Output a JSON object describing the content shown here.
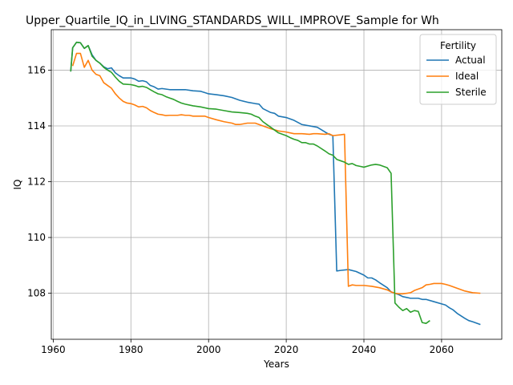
{
  "chart_data": {
    "type": "line",
    "title": "Upper_Quartile_IQ_in_LIVING_STANDARDS_WILL_IMPROVE_Sample for Wh",
    "xlabel": "Years",
    "ylabel": "IQ",
    "xlim": [
      1959.5,
      2075.5
    ],
    "ylim": [
      106.35,
      117.45
    ],
    "x_ticks": [
      1960,
      1980,
      2000,
      2020,
      2040,
      2060
    ],
    "x_tick_labels": [
      "1960",
      "1980",
      "2000",
      "2020",
      "2040",
      "2060"
    ],
    "y_ticks": [
      108,
      110,
      112,
      114,
      116
    ],
    "y_tick_labels": [
      "108",
      "110",
      "112",
      "114",
      "116"
    ],
    "grid": true,
    "legend": {
      "title": "Fertility",
      "placement": "top-right"
    },
    "series": [
      {
        "name": "Actual",
        "color": "#1f77b4",
        "points": [
          [
            1964.5,
            115.95
          ],
          [
            1965,
            116.8
          ],
          [
            1966,
            117.0
          ],
          [
            1967,
            116.98
          ],
          [
            1968,
            116.78
          ],
          [
            1969,
            116.88
          ],
          [
            1970,
            116.55
          ],
          [
            1971,
            116.35
          ],
          [
            1972,
            116.25
          ],
          [
            1973,
            116.12
          ],
          [
            1974,
            116.05
          ],
          [
            1975,
            116.08
          ],
          [
            1976,
            115.9
          ],
          [
            1977,
            115.8
          ],
          [
            1978,
            115.72
          ],
          [
            1980,
            115.72
          ],
          [
            1981,
            115.68
          ],
          [
            1982,
            115.6
          ],
          [
            1983,
            115.62
          ],
          [
            1984,
            115.58
          ],
          [
            1985,
            115.45
          ],
          [
            1986,
            115.4
          ],
          [
            1987,
            115.32
          ],
          [
            1988,
            115.34
          ],
          [
            1990,
            115.3
          ],
          [
            1992,
            115.3
          ],
          [
            1994,
            115.3
          ],
          [
            1996,
            115.26
          ],
          [
            1998,
            115.24
          ],
          [
            2000,
            115.15
          ],
          [
            2002,
            115.12
          ],
          [
            2004,
            115.08
          ],
          [
            2006,
            115.02
          ],
          [
            2008,
            114.92
          ],
          [
            2010,
            114.85
          ],
          [
            2012,
            114.8
          ],
          [
            2013,
            114.78
          ],
          [
            2014,
            114.62
          ],
          [
            2016,
            114.48
          ],
          [
            2017,
            114.45
          ],
          [
            2018,
            114.35
          ],
          [
            2020,
            114.3
          ],
          [
            2022,
            114.2
          ],
          [
            2024,
            114.05
          ],
          [
            2026,
            114.0
          ],
          [
            2028,
            113.95
          ],
          [
            2030,
            113.78
          ],
          [
            2031,
            113.7
          ],
          [
            2032,
            113.65
          ],
          [
            2033,
            108.8
          ],
          [
            2034,
            108.82
          ],
          [
            2036,
            108.85
          ],
          [
            2038,
            108.78
          ],
          [
            2040,
            108.65
          ],
          [
            2041,
            108.55
          ],
          [
            2042,
            108.55
          ],
          [
            2043,
            108.48
          ],
          [
            2044,
            108.38
          ],
          [
            2046,
            108.2
          ],
          [
            2047,
            108.05
          ],
          [
            2048,
            108.0
          ],
          [
            2049,
            107.95
          ],
          [
            2050,
            107.88
          ],
          [
            2052,
            107.82
          ],
          [
            2054,
            107.82
          ],
          [
            2055,
            107.78
          ],
          [
            2056,
            107.78
          ],
          [
            2058,
            107.7
          ],
          [
            2060,
            107.62
          ],
          [
            2061,
            107.58
          ],
          [
            2062,
            107.48
          ],
          [
            2063,
            107.4
          ],
          [
            2064,
            107.28
          ],
          [
            2066,
            107.1
          ],
          [
            2067,
            107.02
          ],
          [
            2068,
            106.98
          ],
          [
            2070,
            106.88
          ]
        ]
      },
      {
        "name": "Ideal",
        "color": "#ff7f0e",
        "points": [
          [
            1965,
            116.15
          ],
          [
            1966,
            116.6
          ],
          [
            1967,
            116.6
          ],
          [
            1968,
            116.1
          ],
          [
            1969,
            116.35
          ],
          [
            1970,
            116.0
          ],
          [
            1971,
            115.85
          ],
          [
            1972,
            115.8
          ],
          [
            1973,
            115.55
          ],
          [
            1974,
            115.45
          ],
          [
            1975,
            115.35
          ],
          [
            1976,
            115.15
          ],
          [
            1977,
            115.0
          ],
          [
            1978,
            114.88
          ],
          [
            1979,
            114.82
          ],
          [
            1980,
            114.8
          ],
          [
            1981,
            114.75
          ],
          [
            1982,
            114.68
          ],
          [
            1983,
            114.7
          ],
          [
            1984,
            114.65
          ],
          [
            1985,
            114.55
          ],
          [
            1986,
            114.48
          ],
          [
            1987,
            114.42
          ],
          [
            1988,
            114.4
          ],
          [
            1989,
            114.37
          ],
          [
            1990,
            114.38
          ],
          [
            1992,
            114.38
          ],
          [
            1993,
            114.4
          ],
          [
            1994,
            114.38
          ],
          [
            1995,
            114.38
          ],
          [
            1996,
            114.35
          ],
          [
            1998,
            114.35
          ],
          [
            1999,
            114.35
          ],
          [
            2000,
            114.3
          ],
          [
            2002,
            114.22
          ],
          [
            2004,
            114.15
          ],
          [
            2006,
            114.1
          ],
          [
            2007,
            114.05
          ],
          [
            2008,
            114.05
          ],
          [
            2010,
            114.1
          ],
          [
            2012,
            114.1
          ],
          [
            2013,
            114.05
          ],
          [
            2014,
            114.0
          ],
          [
            2016,
            113.9
          ],
          [
            2018,
            113.82
          ],
          [
            2020,
            113.78
          ],
          [
            2022,
            113.72
          ],
          [
            2024,
            113.72
          ],
          [
            2026,
            113.7
          ],
          [
            2027,
            113.72
          ],
          [
            2028,
            113.72
          ],
          [
            2030,
            113.7
          ],
          [
            2031,
            113.72
          ],
          [
            2032,
            113.65
          ],
          [
            2034,
            113.68
          ],
          [
            2035,
            113.7
          ],
          [
            2036,
            108.25
          ],
          [
            2037,
            108.3
          ],
          [
            2038,
            108.28
          ],
          [
            2040,
            108.28
          ],
          [
            2042,
            108.25
          ],
          [
            2044,
            108.2
          ],
          [
            2046,
            108.12
          ],
          [
            2047,
            108.05
          ],
          [
            2048,
            108.0
          ],
          [
            2049,
            107.98
          ],
          [
            2050,
            107.98
          ],
          [
            2052,
            108.02
          ],
          [
            2053,
            108.1
          ],
          [
            2054,
            108.15
          ],
          [
            2055,
            108.2
          ],
          [
            2056,
            108.3
          ],
          [
            2057,
            108.32
          ],
          [
            2058,
            108.35
          ],
          [
            2060,
            108.35
          ],
          [
            2061,
            108.32
          ],
          [
            2062,
            108.28
          ],
          [
            2064,
            108.18
          ],
          [
            2066,
            108.08
          ],
          [
            2068,
            108.02
          ],
          [
            2070,
            108.0
          ]
        ]
      },
      {
        "name": "Sterile",
        "color": "#2ca02c",
        "points": [
          [
            1964.5,
            115.95
          ],
          [
            1965,
            116.8
          ],
          [
            1966,
            117.0
          ],
          [
            1967,
            116.98
          ],
          [
            1968,
            116.78
          ],
          [
            1969,
            116.88
          ],
          [
            1970,
            116.5
          ],
          [
            1971,
            116.35
          ],
          [
            1972,
            116.25
          ],
          [
            1973,
            116.1
          ],
          [
            1974,
            116.0
          ],
          [
            1975,
            115.92
          ],
          [
            1976,
            115.75
          ],
          [
            1977,
            115.6
          ],
          [
            1978,
            115.5
          ],
          [
            1980,
            115.48
          ],
          [
            1981,
            115.45
          ],
          [
            1982,
            115.4
          ],
          [
            1983,
            115.42
          ],
          [
            1984,
            115.38
          ],
          [
            1985,
            115.3
          ],
          [
            1986,
            115.22
          ],
          [
            1987,
            115.15
          ],
          [
            1988,
            115.12
          ],
          [
            1989,
            115.05
          ],
          [
            1990,
            115.0
          ],
          [
            1991,
            114.95
          ],
          [
            1992,
            114.88
          ],
          [
            1993,
            114.82
          ],
          [
            1994,
            114.78
          ],
          [
            1996,
            114.72
          ],
          [
            1998,
            114.68
          ],
          [
            2000,
            114.62
          ],
          [
            2002,
            114.6
          ],
          [
            2004,
            114.55
          ],
          [
            2006,
            114.5
          ],
          [
            2008,
            114.48
          ],
          [
            2010,
            114.45
          ],
          [
            2011,
            114.42
          ],
          [
            2012,
            114.35
          ],
          [
            2013,
            114.3
          ],
          [
            2014,
            114.15
          ],
          [
            2016,
            113.95
          ],
          [
            2018,
            113.75
          ],
          [
            2020,
            113.65
          ],
          [
            2021,
            113.58
          ],
          [
            2022,
            113.52
          ],
          [
            2023,
            113.48
          ],
          [
            2024,
            113.4
          ],
          [
            2025,
            113.4
          ],
          [
            2026,
            113.35
          ],
          [
            2027,
            113.35
          ],
          [
            2028,
            113.28
          ],
          [
            2030,
            113.1
          ],
          [
            2031,
            113.0
          ],
          [
            2032,
            112.95
          ],
          [
            2033,
            112.8
          ],
          [
            2034,
            112.75
          ],
          [
            2035,
            112.7
          ],
          [
            2036,
            112.62
          ],
          [
            2037,
            112.65
          ],
          [
            2038,
            112.58
          ],
          [
            2039,
            112.55
          ],
          [
            2040,
            112.52
          ],
          [
            2042,
            112.6
          ],
          [
            2043,
            112.62
          ],
          [
            2044,
            112.6
          ],
          [
            2045,
            112.55
          ],
          [
            2046,
            112.5
          ],
          [
            2047,
            112.3
          ],
          [
            2048,
            107.65
          ],
          [
            2049,
            107.5
          ],
          [
            2050,
            107.38
          ],
          [
            2051,
            107.45
          ],
          [
            2052,
            107.32
          ],
          [
            2053,
            107.38
          ],
          [
            2054,
            107.35
          ],
          [
            2055,
            106.95
          ],
          [
            2056,
            106.92
          ],
          [
            2057,
            107.02
          ]
        ]
      }
    ]
  }
}
